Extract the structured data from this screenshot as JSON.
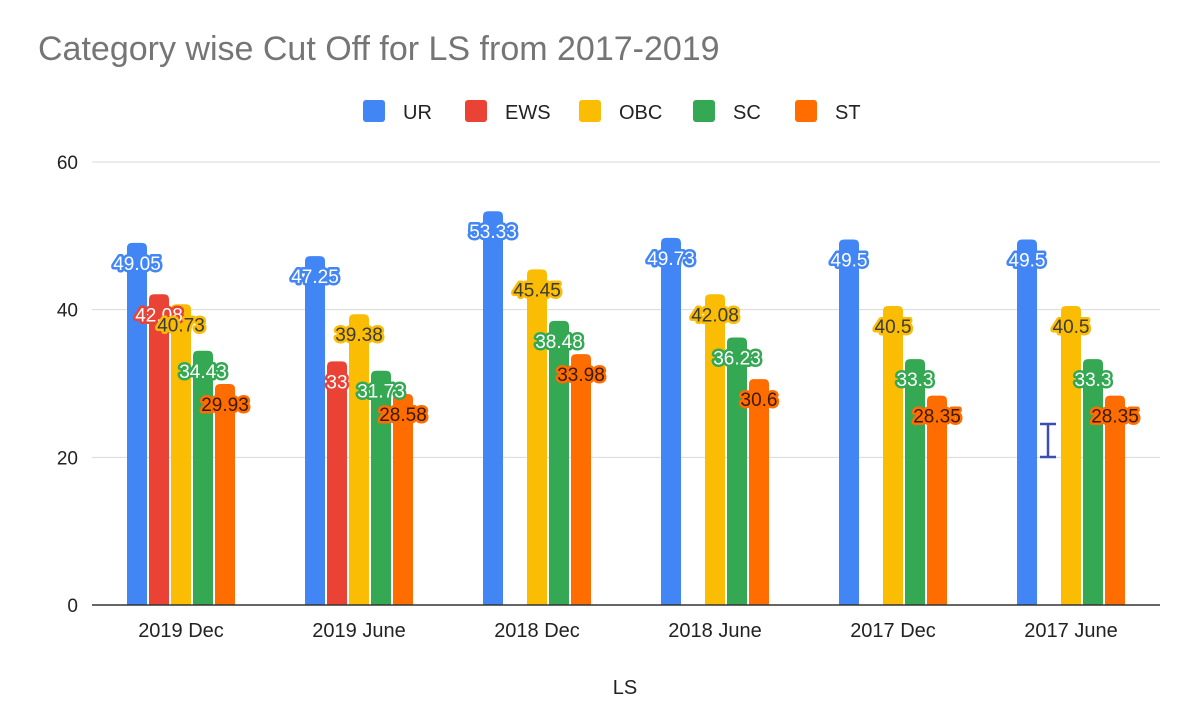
{
  "chart_data": {
    "type": "bar",
    "title": "Category wise Cut Off for LS from 2017-2019",
    "xlabel": "LS",
    "ylabel": "",
    "ylim": [
      0,
      60
    ],
    "yticks": [
      0,
      20,
      40,
      60
    ],
    "grid": true,
    "legend_position": "top",
    "categories": [
      "2019 Dec",
      "2019 June",
      "2018 Dec",
      "2018 June",
      "2017 Dec",
      "2017 June"
    ],
    "series": [
      {
        "name": "UR",
        "color": "#4285F4",
        "values": [
          49.05,
          47.25,
          53.33,
          49.73,
          49.5,
          49.5
        ]
      },
      {
        "name": "EWS",
        "color": "#EA4335",
        "values": [
          42.08,
          33,
          null,
          null,
          null,
          null
        ]
      },
      {
        "name": "OBC",
        "color": "#FBBC04",
        "values": [
          40.73,
          39.38,
          45.45,
          42.08,
          40.5,
          40.5
        ]
      },
      {
        "name": "SC",
        "color": "#34A853",
        "values": [
          34.43,
          31.73,
          38.48,
          36.23,
          33.3,
          33.3
        ]
      },
      {
        "name": "ST",
        "color": "#FF6D01",
        "values": [
          29.93,
          28.58,
          33.98,
          30.6,
          28.35,
          28.35
        ]
      }
    ]
  }
}
